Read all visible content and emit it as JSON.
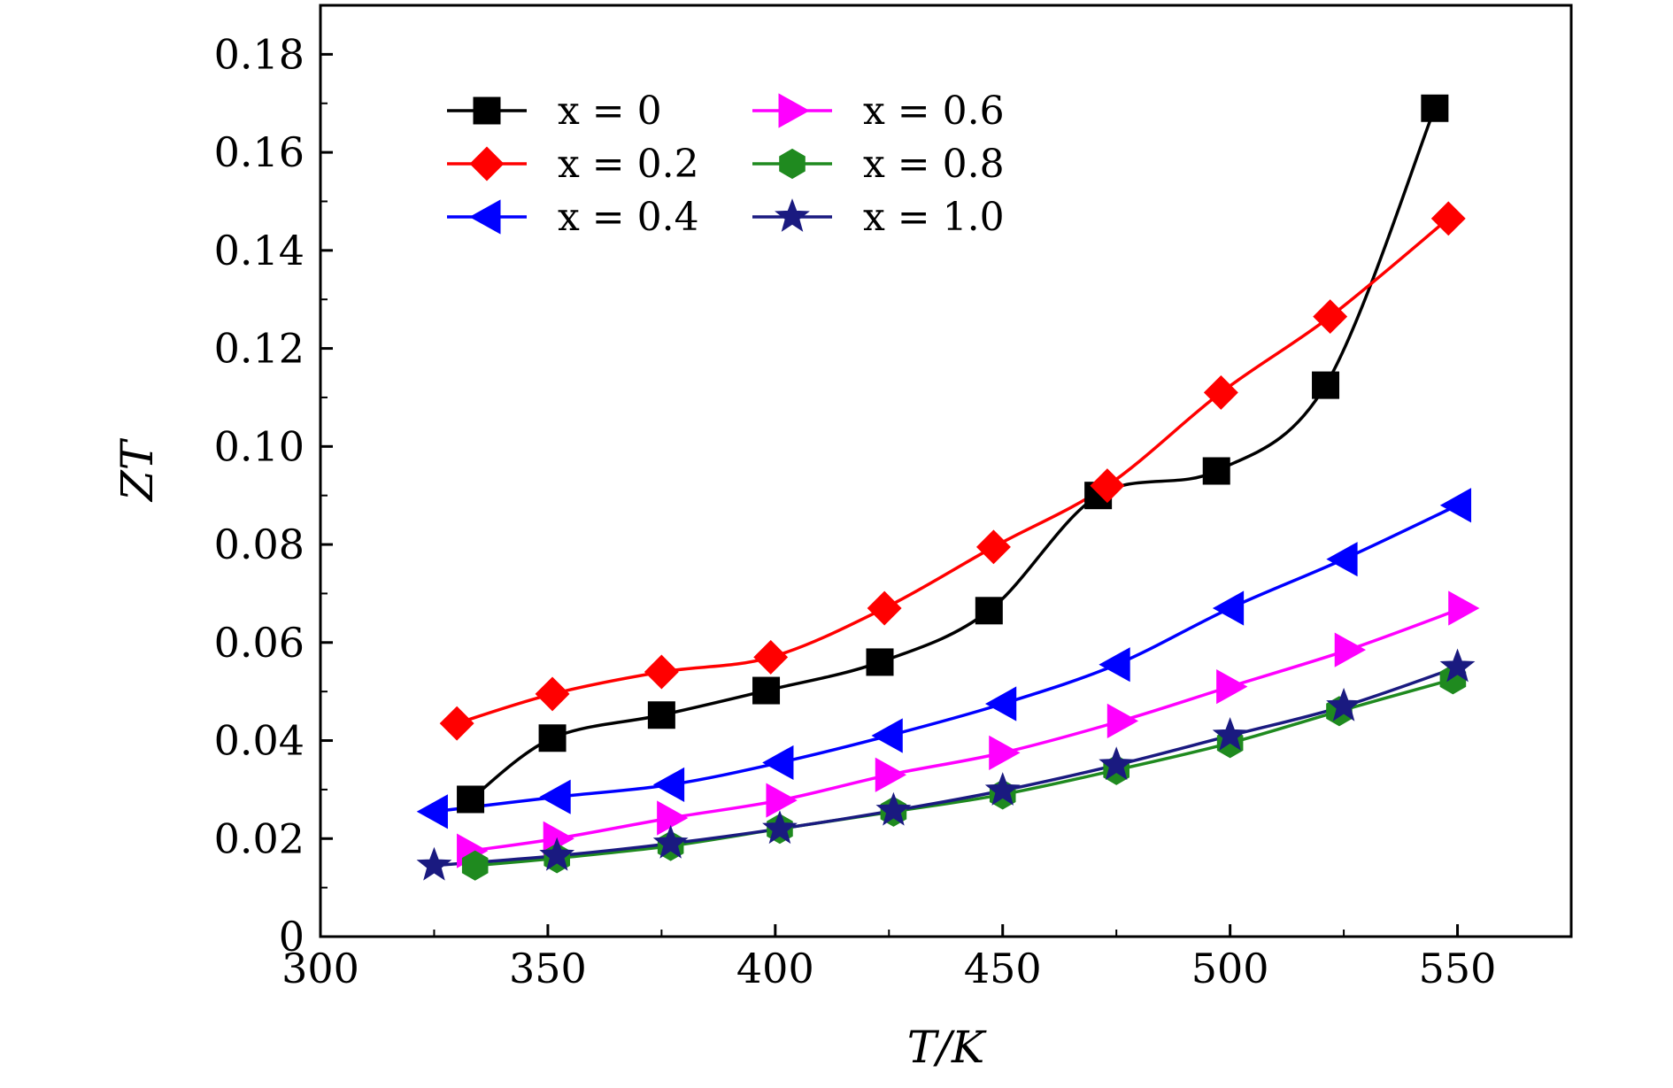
{
  "chart_data": {
    "type": "line",
    "title": "",
    "xlabel": "T/K",
    "ylabel": "ZT",
    "xlim": [
      300,
      575
    ],
    "ylim": [
      0,
      0.19
    ],
    "xticks": [
      300,
      350,
      400,
      450,
      500,
      550
    ],
    "xtick_labels": [
      "300",
      "350",
      "400",
      "450",
      "500",
      "550"
    ],
    "yticks": [
      0,
      0.02,
      0.04,
      0.06,
      0.08,
      0.1,
      0.12,
      0.14,
      0.16,
      0.18
    ],
    "ytick_labels": [
      "0",
      "0.02",
      "0.04",
      "0.06",
      "0.08",
      "0.10",
      "0.12",
      "0.14",
      "0.16",
      "0.18"
    ],
    "legend_position": "top-left",
    "grid": false,
    "series": [
      {
        "name": "x = 0",
        "color": "#000000",
        "marker": "square",
        "x": [
          333,
          351,
          375,
          398,
          423,
          447,
          471,
          497,
          521,
          545
        ],
        "y": [
          0.028,
          0.0405,
          0.0452,
          0.0502,
          0.056,
          0.0665,
          0.09,
          0.095,
          0.1125,
          0.169
        ]
      },
      {
        "name": "x = 0.2",
        "color": "#ff0000",
        "marker": "diamond",
        "x": [
          330,
          351,
          375,
          399,
          424,
          448,
          473,
          498,
          522,
          548
        ],
        "y": [
          0.0435,
          0.0495,
          0.054,
          0.057,
          0.067,
          0.0795,
          0.092,
          0.111,
          0.1265,
          0.1465
        ]
      },
      {
        "name": "x = 0.4",
        "color": "#0000ff",
        "marker": "triangle-left",
        "x": [
          325,
          352,
          377,
          401,
          425,
          450,
          475,
          500,
          525,
          550
        ],
        "y": [
          0.0255,
          0.0285,
          0.031,
          0.0355,
          0.041,
          0.0475,
          0.0555,
          0.067,
          0.077,
          0.088
        ]
      },
      {
        "name": "x = 0.6",
        "color": "#ff00ff",
        "marker": "triangle-right",
        "x": [
          333,
          352,
          377,
          401,
          425,
          450,
          476,
          500,
          526,
          551
        ],
        "y": [
          0.0175,
          0.02,
          0.0242,
          0.0278,
          0.033,
          0.0375,
          0.044,
          0.051,
          0.0585,
          0.067
        ]
      },
      {
        "name": "x = 0.8",
        "color": "#1f8a1f",
        "marker": "hexagon",
        "x": [
          334,
          352,
          377,
          401,
          426,
          450,
          475,
          500,
          524,
          549
        ],
        "y": [
          0.0145,
          0.016,
          0.0185,
          0.022,
          0.0255,
          0.029,
          0.034,
          0.0395,
          0.046,
          0.0525
        ]
      },
      {
        "name": "x = 1.0",
        "color": "#1a1a80",
        "marker": "star",
        "x": [
          325,
          352,
          377,
          401,
          426,
          450,
          475,
          500,
          525,
          550
        ],
        "y": [
          0.0145,
          0.0165,
          0.019,
          0.022,
          0.0257,
          0.0298,
          0.035,
          0.041,
          0.047,
          0.055
        ]
      }
    ]
  }
}
